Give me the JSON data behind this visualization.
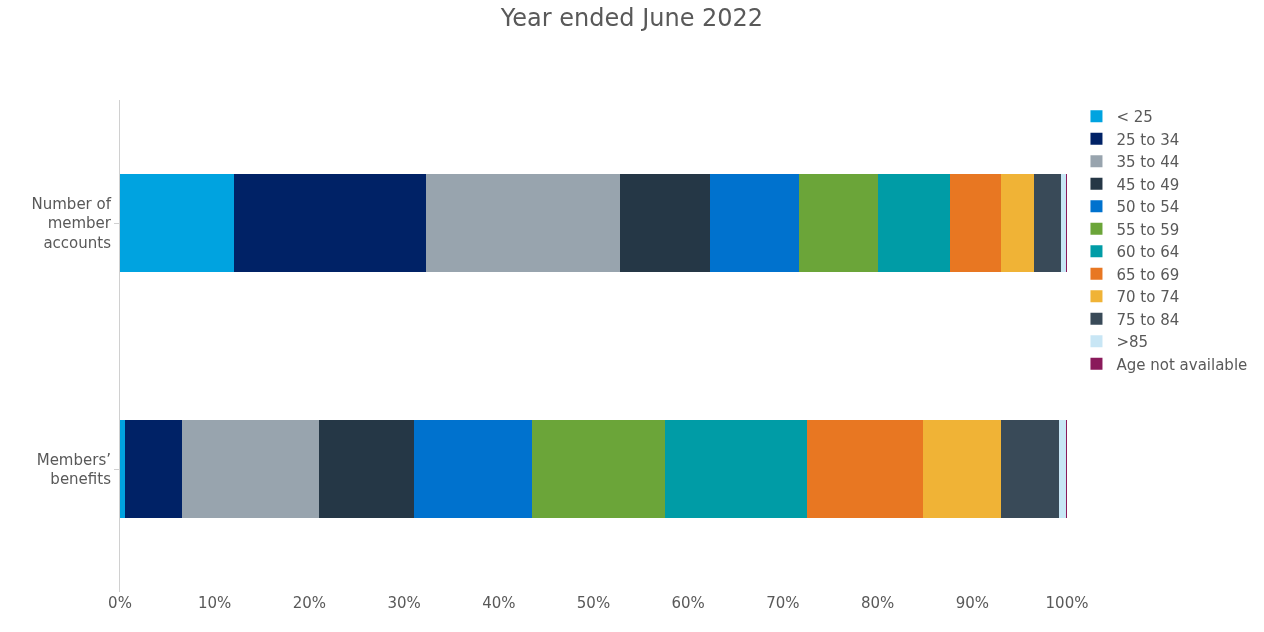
{
  "chart_data": {
    "type": "bar",
    "title": "Year ended June 2022",
    "orientation": "horizontal",
    "stacked": true,
    "categories": [
      "Number of member accounts",
      "Members’ benefits"
    ],
    "series": [
      {
        "name": "< 25",
        "color": "#00a3e0",
        "values": [
          12.0,
          0.5
        ]
      },
      {
        "name": "25 to 34",
        "color": "#002266",
        "values": [
          20.3,
          6.0
        ]
      },
      {
        "name": "35 to 44",
        "color": "#98a4ae",
        "values": [
          20.5,
          14.5
        ]
      },
      {
        "name": "45 to 49",
        "color": "#253746",
        "values": [
          9.5,
          10.0
        ]
      },
      {
        "name": "50 to 54",
        "color": "#0072ce",
        "values": [
          9.4,
          12.5
        ]
      },
      {
        "name": "55 to 59",
        "color": "#6ba539",
        "values": [
          8.3,
          14.0
        ]
      },
      {
        "name": "60 to 64",
        "color": "#009ca6",
        "values": [
          7.6,
          15.0
        ]
      },
      {
        "name": "65 to 69",
        "color": "#e87722",
        "values": [
          5.4,
          12.3
        ]
      },
      {
        "name": "70 to 74",
        "color": "#f0b336",
        "values": [
          3.5,
          8.2
        ]
      },
      {
        "name": "75 to 84",
        "color": "#394a58",
        "values": [
          2.9,
          6.2
        ]
      },
      {
        "name": ">85",
        "color": "#c8e6f5",
        "values": [
          0.5,
          0.7
        ]
      },
      {
        "name": "Age not available",
        "color": "#8a1a5b",
        "values": [
          0.1,
          0.1
        ]
      }
    ],
    "xlim": [
      0,
      100
    ],
    "xticks": [
      {
        "value": 0,
        "label": "0%"
      },
      {
        "value": 10,
        "label": "10%"
      },
      {
        "value": 20,
        "label": "20%"
      },
      {
        "value": 30,
        "label": "30%"
      },
      {
        "value": 40,
        "label": "40%"
      },
      {
        "value": 50,
        "label": "50%"
      },
      {
        "value": 60,
        "label": "60%"
      },
      {
        "value": 70,
        "label": "70%"
      },
      {
        "value": 80,
        "label": "80%"
      },
      {
        "value": 90,
        "label": "90%"
      },
      {
        "value": 100,
        "label": "100%"
      }
    ],
    "legend": "right"
  }
}
